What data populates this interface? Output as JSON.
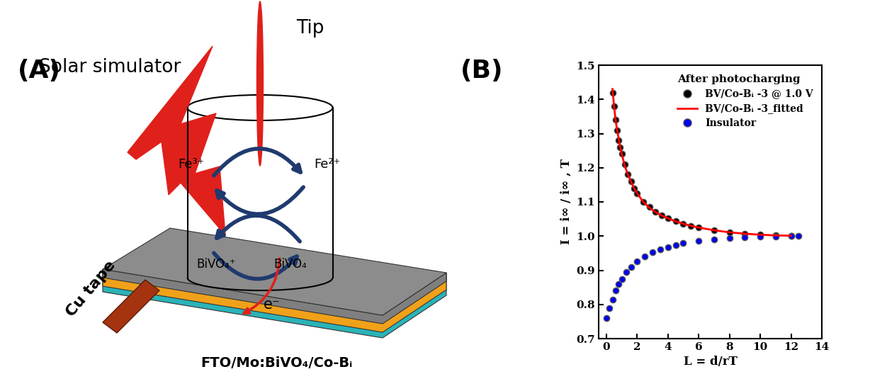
{
  "diagram": {
    "panel_label": "(A)",
    "labels": {
      "light": "Solar simulator",
      "tip": "Tip",
      "fe3": "Fe³⁺",
      "fe2": "Fe²⁺",
      "bivo4_ox": "BiVO₄⁺",
      "bivo4": "BiVO₄",
      "electron": "e⁻",
      "contact": "Cu tape",
      "substrate": "FTO/Mo:BiVO₄/Co-Bᵢ"
    }
  },
  "chart_data": {
    "type": "scatter",
    "title": "(B)",
    "legend_title": "After photocharging",
    "x_label": "L = d/rT",
    "y_label": "I = i∞ / i∞ , T",
    "xlim": [
      -0.5,
      14
    ],
    "xticks": [
      0,
      2,
      4,
      6,
      8,
      10,
      12,
      14
    ],
    "ylim": [
      0.7,
      1.5
    ],
    "yticks": [
      0.7,
      0.8,
      0.9,
      1.0,
      1.1,
      1.2,
      1.3,
      1.4,
      1.5
    ],
    "legend": "upper right",
    "series": [
      {
        "name": "BV/Co-Bᵢ -3 @ 1.0 V",
        "type": "scatter",
        "color": "#000000",
        "marker": "circle",
        "x": [
          0.4,
          0.5,
          0.6,
          0.7,
          0.8,
          0.9,
          1.0,
          1.2,
          1.4,
          1.6,
          1.8,
          2.0,
          2.4,
          2.8,
          3.2,
          3.6,
          4.0,
          4.5,
          5.0,
          5.5,
          6.0,
          7.0,
          8.0,
          9.0,
          10.0,
          11.0,
          12.0
        ],
        "values": [
          1.42,
          1.38,
          1.34,
          1.31,
          1.28,
          1.26,
          1.24,
          1.21,
          1.18,
          1.16,
          1.14,
          1.125,
          1.1,
          1.085,
          1.07,
          1.06,
          1.052,
          1.044,
          1.036,
          1.03,
          1.025,
          1.017,
          1.011,
          1.007,
          1.004,
          1.002,
          1.001
        ]
      },
      {
        "name": "BV/Co-Bᵢ -3_fitted",
        "type": "line",
        "color": "#ff0000",
        "line_style": "solid",
        "x": [
          0.4,
          0.5,
          0.6,
          0.7,
          0.8,
          0.9,
          1.0,
          1.2,
          1.4,
          1.6,
          1.8,
          2.0,
          2.4,
          2.8,
          3.2,
          3.6,
          4.0,
          4.5,
          5.0,
          5.5,
          6.0,
          7.0,
          8.0,
          9.0,
          10.0,
          11.0,
          12.0
        ],
        "values": [
          1.43,
          1.38,
          1.34,
          1.31,
          1.285,
          1.26,
          1.24,
          1.205,
          1.18,
          1.16,
          1.14,
          1.125,
          1.1,
          1.083,
          1.07,
          1.06,
          1.052,
          1.043,
          1.036,
          1.03,
          1.025,
          1.017,
          1.011,
          1.007,
          1.004,
          1.002,
          1.001
        ]
      },
      {
        "name": "Insulator",
        "type": "scatter",
        "color": "#0000ff",
        "marker": "circle",
        "x": [
          0,
          0.2,
          0.4,
          0.6,
          0.8,
          1.0,
          1.3,
          1.6,
          2.0,
          2.5,
          3.0,
          3.5,
          4.0,
          4.5,
          5.0,
          6.0,
          7.0,
          8.0,
          9.0,
          10.0,
          11.0,
          12.0,
          12.5
        ],
        "values": [
          0.76,
          0.79,
          0.815,
          0.84,
          0.86,
          0.875,
          0.895,
          0.91,
          0.925,
          0.94,
          0.952,
          0.961,
          0.968,
          0.974,
          0.979,
          0.986,
          0.991,
          0.994,
          0.997,
          0.998,
          0.999,
          1.0,
          1.0
        ]
      }
    ]
  }
}
